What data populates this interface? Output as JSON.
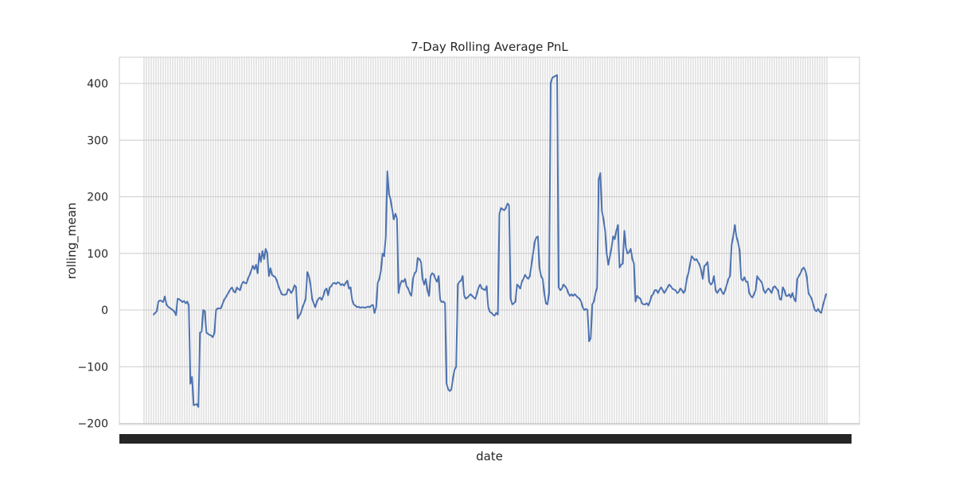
{
  "chart_data": {
    "type": "line",
    "title": "7-Day Rolling Average PnL",
    "xlabel": "date",
    "ylabel": "rolling_mean",
    "ylim": [
      -200,
      450
    ],
    "yticks": [
      -200,
      -100,
      0,
      100,
      200,
      300,
      400
    ],
    "ytick_labels": [
      "−200",
      "−100",
      "0",
      "100",
      "200",
      "300",
      "400"
    ],
    "grid": true,
    "x_axis_note": "dense overlapping date tick labels (illegible)",
    "colors": {
      "line": "#4c72b0",
      "grid": "#cccccc",
      "frame": "#cccccc",
      "text": "#262626"
    },
    "series": [
      {
        "values": [
          -8,
          -5,
          -2,
          15,
          17,
          16,
          14,
          24,
          10,
          6,
          4,
          2,
          0,
          -3,
          -9,
          20,
          19,
          17,
          14,
          16,
          12,
          15,
          8,
          -130,
          -118,
          -168,
          -167,
          -166,
          -171,
          -40,
          -38,
          0,
          -2,
          -40,
          -42,
          -44,
          -45,
          -48,
          -40,
          0,
          3,
          3,
          3,
          10,
          18,
          22,
          27,
          32,
          37,
          40,
          33,
          31,
          40,
          37,
          35,
          45,
          50,
          48,
          47,
          56,
          62,
          70,
          78,
          72,
          80,
          65,
          100,
          85,
          104,
          90,
          108,
          100,
          60,
          74,
          62,
          60,
          58,
          52,
          42,
          35,
          28,
          27,
          27,
          28,
          37,
          35,
          30,
          35,
          44,
          40,
          -15,
          -10,
          -5,
          5,
          12,
          20,
          67,
          60,
          45,
          20,
          12,
          5,
          15,
          20,
          22,
          18,
          25,
          35,
          38,
          26,
          40,
          42,
          47,
          48,
          46,
          49,
          48,
          44,
          46,
          43,
          48,
          52,
          38,
          40,
          18,
          10,
          8,
          5,
          6,
          4,
          5,
          5,
          4,
          5,
          6,
          5,
          8,
          9,
          -5,
          5,
          48,
          55,
          70,
          100,
          95,
          130,
          245,
          205,
          195,
          178,
          160,
          170,
          162,
          30,
          45,
          52,
          50,
          55,
          42,
          38,
          30,
          25,
          55,
          65,
          68,
          92,
          90,
          85,
          55,
          45,
          55,
          35,
          25,
          60,
          65,
          63,
          55,
          50,
          60,
          18,
          14,
          15,
          12,
          -130,
          -140,
          -143,
          -140,
          -120,
          -105,
          -100,
          45,
          50,
          52,
          60,
          25,
          20,
          22,
          25,
          28,
          25,
          22,
          20,
          30,
          40,
          45,
          38,
          37,
          35,
          42,
          5,
          -3,
          -5,
          -8,
          -10,
          -5,
          -8,
          170,
          180,
          178,
          176,
          180,
          188,
          185,
          20,
          10,
          12,
          15,
          45,
          42,
          38,
          50,
          55,
          62,
          58,
          55,
          60,
          80,
          100,
          120,
          128,
          130,
          75,
          60,
          55,
          30,
          12,
          10,
          30,
          400,
          410,
          412,
          413,
          415,
          40,
          35,
          38,
          45,
          42,
          38,
          30,
          25,
          28,
          25,
          28,
          25,
          22,
          20,
          15,
          5,
          0,
          2,
          0,
          -55,
          -50,
          10,
          15,
          30,
          40,
          230,
          242,
          175,
          160,
          140,
          100,
          80,
          95,
          110,
          130,
          125,
          140,
          150,
          75,
          80,
          82,
          140,
          110,
          100,
          102,
          108,
          90,
          82,
          15,
          25,
          22,
          20,
          12,
          10,
          10,
          12,
          8,
          15,
          25,
          28,
          35,
          35,
          30,
          36,
          40,
          35,
          30,
          35,
          40,
          45,
          42,
          38,
          36,
          35,
          30,
          32,
          38,
          35,
          30,
          35,
          55,
          65,
          80,
          95,
          92,
          88,
          90,
          85,
          80,
          70,
          55,
          78,
          80,
          85,
          50,
          45,
          48,
          60,
          35,
          30,
          35,
          38,
          32,
          28,
          35,
          45,
          55,
          60,
          115,
          130,
          150,
          130,
          120,
          105,
          55,
          52,
          58,
          50,
          50,
          30,
          25,
          22,
          28,
          35,
          60,
          55,
          52,
          48,
          35,
          30,
          35,
          38,
          35,
          30,
          40,
          42,
          38,
          35,
          20,
          18,
          40,
          35,
          25,
          25,
          28,
          22,
          30,
          20,
          15,
          55,
          60,
          65,
          72,
          75,
          70,
          58,
          30,
          25,
          20,
          10,
          0,
          -2,
          2,
          -3,
          -5,
          8,
          18,
          28
        ]
      }
    ]
  }
}
